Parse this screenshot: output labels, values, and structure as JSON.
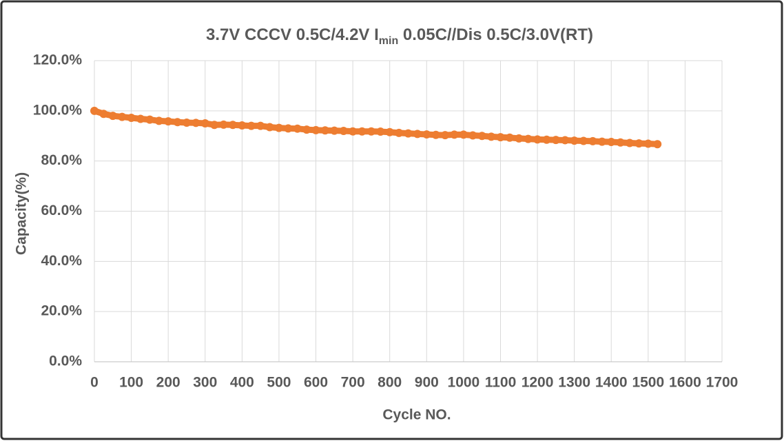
{
  "chart_data": {
    "type": "scatter",
    "title": {
      "before": "3.7V  CCCV 0.5C/4.2V  I",
      "subscript": "min",
      "after": " 0.05C//Dis 0.5C/3.0V(RT)"
    },
    "x_label": "Cycle NO.",
    "y_label": "Capacity(%)",
    "xlim": [
      0,
      1700
    ],
    "xticks": [
      0,
      100,
      200,
      300,
      400,
      500,
      600,
      700,
      800,
      900,
      1000,
      1100,
      1200,
      1300,
      1400,
      1500,
      1600,
      1700
    ],
    "ylim": [
      0,
      120
    ],
    "yticks": [
      {
        "value": 0,
        "label": "0.0%"
      },
      {
        "value": 20,
        "label": "20.0%"
      },
      {
        "value": 40,
        "label": "40.0%"
      },
      {
        "value": 60,
        "label": "60.0%"
      },
      {
        "value": 80,
        "label": "80.0%"
      },
      {
        "value": 100,
        "label": "100.0%"
      },
      {
        "value": 120,
        "label": "120.0%"
      }
    ],
    "grid": true,
    "series": [
      {
        "color": "#ed7d31",
        "x": [
          0,
          25,
          50,
          75,
          100,
          125,
          150,
          175,
          200,
          225,
          250,
          275,
          300,
          325,
          350,
          375,
          400,
          425,
          450,
          475,
          500,
          525,
          550,
          575,
          600,
          625,
          650,
          675,
          700,
          725,
          750,
          775,
          800,
          825,
          850,
          875,
          900,
          925,
          950,
          975,
          1000,
          1025,
          1050,
          1075,
          1100,
          1125,
          1150,
          1175,
          1200,
          1225,
          1250,
          1275,
          1300,
          1325,
          1350,
          1375,
          1400,
          1425,
          1450,
          1475,
          1500,
          1525
        ],
        "values": [
          100,
          98.8,
          98.0,
          97.6,
          97.2,
          96.8,
          96.5,
          96.0,
          95.8,
          95.5,
          95.3,
          95.2,
          95.0,
          94.4,
          94.5,
          94.4,
          94.2,
          94.0,
          94.0,
          93.5,
          93.2,
          93.0,
          92.9,
          92.5,
          92.3,
          92.2,
          92.1,
          92.0,
          91.8,
          91.8,
          91.8,
          91.7,
          91.5,
          91.2,
          91.0,
          90.8,
          90.6,
          90.4,
          90.3,
          90.5,
          90.5,
          90.2,
          90.0,
          89.7,
          89.5,
          89.3,
          89.0,
          88.8,
          88.6,
          88.5,
          88.4,
          88.3,
          88.1,
          88.0,
          87.9,
          87.7,
          87.6,
          87.4,
          87.2,
          87.0,
          86.9,
          86.7
        ]
      }
    ]
  }
}
